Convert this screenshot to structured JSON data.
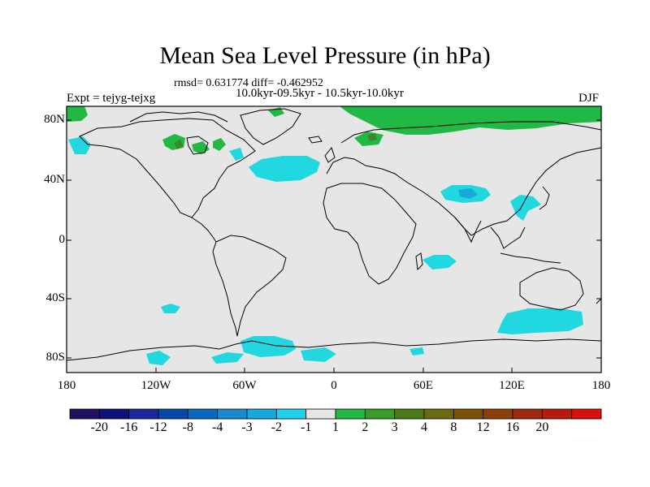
{
  "title": "Mean Sea Level Pressure (in hPa)",
  "stats": "rmsd= 0.631774 diff= -0.462952",
  "period": "10.0kyr-09.5kyr - 10.5kyr-10.0kyr",
  "experiment": "Expt = tejyg-tejxg",
  "season": "DJF",
  "lat_labels": [
    "80N",
    "40N",
    "0",
    "40S",
    "80S"
  ],
  "lon_labels": [
    "180",
    "120W",
    "60W",
    "0",
    "60E",
    "120E",
    "180"
  ],
  "colorbar": {
    "colors": [
      "#201060",
      "#10107a",
      "#1a2a9a",
      "#0a48a8",
      "#0a68c0",
      "#1a8ad0",
      "#18a8e0",
      "#20d0e8",
      "#e6e6e6",
      "#22b846",
      "#3a9a2a",
      "#4a7a18",
      "#6a6a10",
      "#7a5008",
      "#8a4008",
      "#a02810",
      "#b81a10",
      "#d81010"
    ],
    "labels": [
      "-20",
      "-16",
      "-12",
      "-8",
      "-4",
      "-3",
      "-2",
      "-1",
      "1",
      "2",
      "3",
      "4",
      "8",
      "12",
      "16",
      "20"
    ]
  },
  "colors": {
    "background": "#e6e6e6",
    "negative": "#22d8e0",
    "negative_strong": "#1aa8d8",
    "positive": "#22b846",
    "positive_strong": "#3a8a2a"
  }
}
